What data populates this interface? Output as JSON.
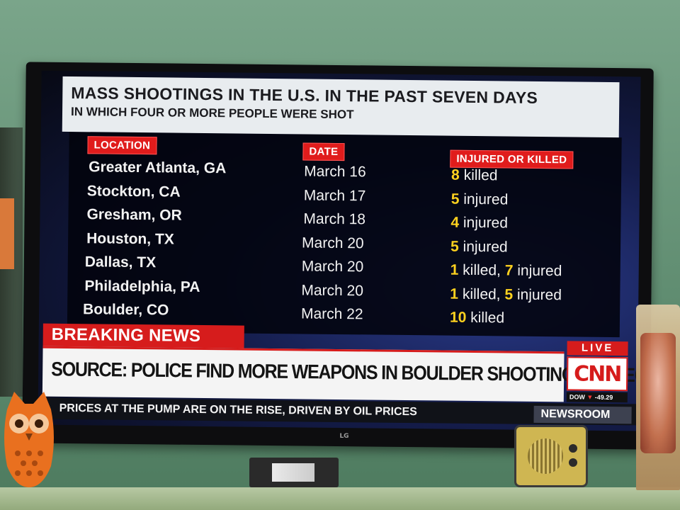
{
  "chyron": {
    "title": "MASS SHOOTINGS IN THE U.S. IN THE PAST SEVEN DAYS",
    "subtitle": "IN WHICH FOUR OR MORE PEOPLE WERE SHOT",
    "columns": [
      "LOCATION",
      "DATE",
      "INJURED OR KILLED"
    ],
    "rows": [
      {
        "location": "Greater Atlanta, GA",
        "date": "March 16",
        "outcome": [
          {
            "n": "8",
            "label": " killed"
          }
        ]
      },
      {
        "location": "Stockton, CA",
        "date": "March 17",
        "outcome": [
          {
            "n": "5",
            "label": " injured"
          }
        ]
      },
      {
        "location": "Gresham, OR",
        "date": "March 18",
        "outcome": [
          {
            "n": "4",
            "label": " injured"
          }
        ]
      },
      {
        "location": "Houston, TX",
        "date": "March 20",
        "outcome": [
          {
            "n": "5",
            "label": " injured"
          }
        ]
      },
      {
        "location": "Dallas, TX",
        "date": "March 20",
        "outcome": [
          {
            "n": "1",
            "label": " killed, "
          },
          {
            "n": "7",
            "label": " injured"
          }
        ]
      },
      {
        "location": "Philadelphia, PA",
        "date": "March 20",
        "outcome": [
          {
            "n": "1",
            "label": " killed, "
          },
          {
            "n": "5",
            "label": " injured"
          }
        ]
      },
      {
        "location": "Boulder, CO",
        "date": "March 22",
        "outcome": [
          {
            "n": "10",
            "label": " killed"
          }
        ]
      }
    ]
  },
  "breaking": {
    "tag": "BREAKING NEWS",
    "headline": "SOURCE: POLICE FIND MORE WEAPONS IN BOULDER SHOOTING SUSPECT'S HOME"
  },
  "network": {
    "live": "LIVE",
    "logo": "CNN",
    "dow_label": "DOW",
    "dow_value": "-49.29"
  },
  "ticker": {
    "text": "PRICES AT THE PUMP ARE ON THE RISE, DRIVEN BY OIL PRICES",
    "program": "NEWSROOM"
  },
  "tv": {
    "brand": "LG"
  },
  "colors": {
    "accent_red": "#d61c1c",
    "number_yellow": "#ffd21f"
  }
}
